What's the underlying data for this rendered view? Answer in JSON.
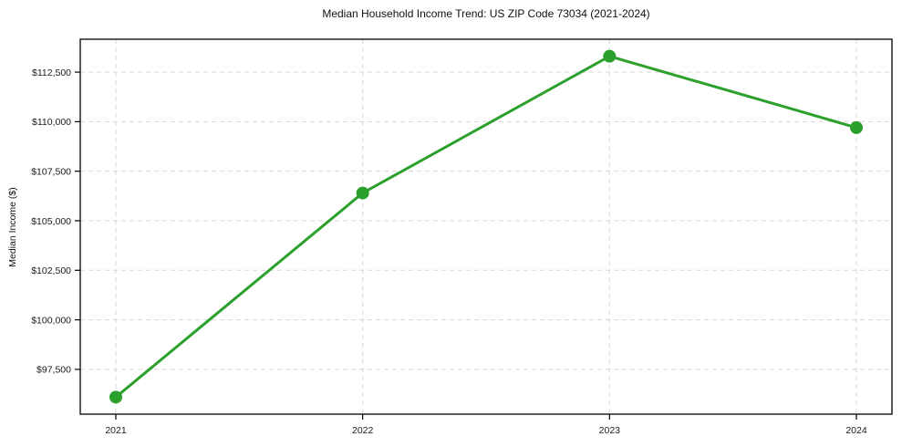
{
  "chart_data": {
    "type": "line",
    "title": "Median Household Income Trend: US ZIP Code 73034 (2021-2024)",
    "xlabel": "",
    "ylabel": "Median Income ($)",
    "categories": [
      "2021",
      "2022",
      "2023",
      "2024"
    ],
    "series": [
      {
        "name": "Median Household Income",
        "values": [
          96100,
          106400,
          113300,
          109700
        ]
      }
    ],
    "ylim": [
      95240,
      114160
    ],
    "yticks": [
      97500,
      100000,
      102500,
      105000,
      107500,
      110000,
      112500
    ],
    "ytick_labels": [
      "$97,500",
      "$100,000",
      "$102,500",
      "$105,000",
      "$107,500",
      "$110,000",
      "$112,500"
    ],
    "line_color": "#2ca02c",
    "marker": "circle",
    "grid": true,
    "grid_style": "dashed",
    "grid_color": "#d7d7d7",
    "legend_position": "none"
  }
}
